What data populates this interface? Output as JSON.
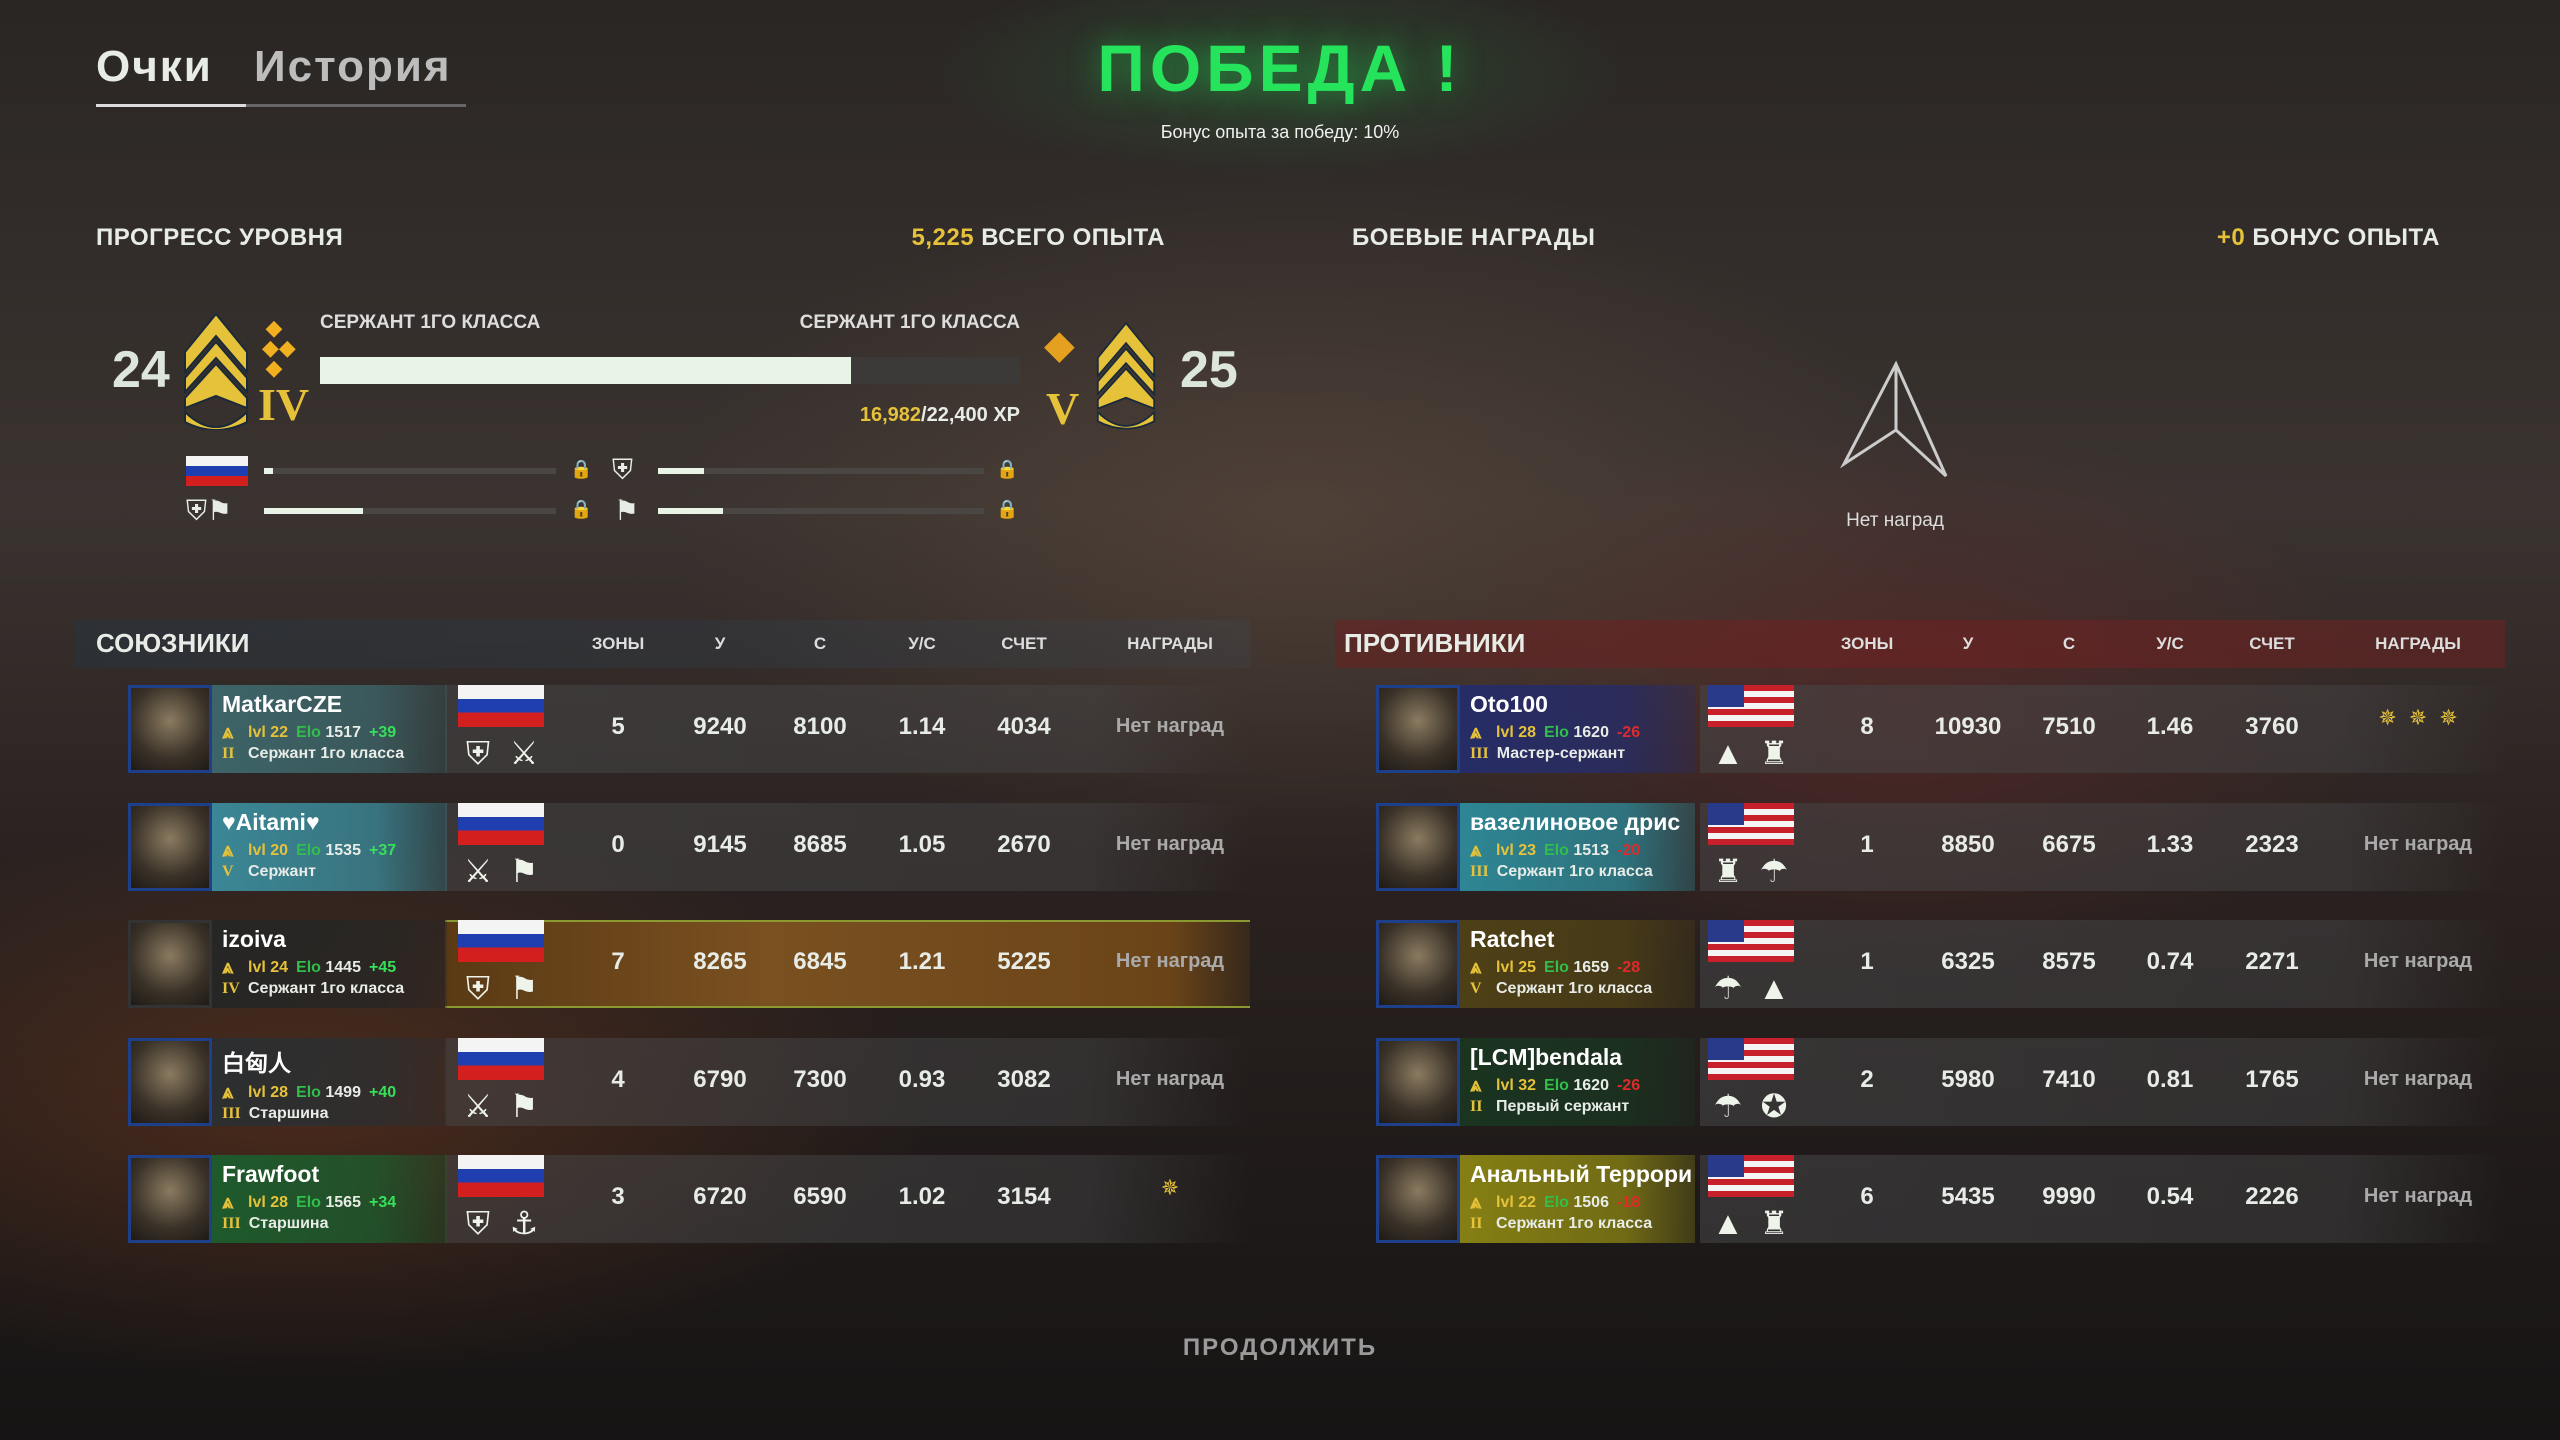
{
  "tabs": [
    {
      "label": "Очки",
      "active": true
    },
    {
      "label": "История",
      "active": false
    }
  ],
  "result": {
    "title": "ПОБЕДА !",
    "subtitle": "Бонус опыта за победу: 10%",
    "title_color": "#26e35c"
  },
  "progress": {
    "header": "ПРОГРЕСС УРОВНЯ",
    "total_xp_value": "5,225",
    "total_xp_label": "ВСЕГО ОПЫТА",
    "current_level": "24",
    "next_level": "25",
    "current_rank": "СЕРЖАНТ 1ГО КЛАССА",
    "next_rank": "СЕРЖАНТ 1ГО КЛАССА",
    "current_numeral": "IV",
    "next_numeral": "V",
    "xp_current": "16,982",
    "xp_total": "/22,400 XP",
    "fill_fraction": 0.758,
    "sub_progress": [
      {
        "icon": "russia-flag-icon",
        "fraction": 0.03
      },
      {
        "icon": "tank-class-icon",
        "fraction": 0.14
      },
      {
        "icon": "tank-support-class-icon",
        "fraction": 0.34
      },
      {
        "icon": "support-class-icon",
        "fraction": 0.2
      }
    ]
  },
  "awards": {
    "header": "БОЕВЫЕ НАГРАДЫ",
    "bonus_value": "+0",
    "bonus_label": "БОНУС ОПЫТА",
    "empty_text": "Нет наград"
  },
  "columns": [
    "ЗОНЫ",
    "У",
    "С",
    "У/С",
    "СЧЕТ",
    "НАГРАДЫ"
  ],
  "allies": {
    "title": "СОЮЗНИКИ",
    "players": [
      {
        "name": "MatkarCZE",
        "lvl": "lvl 22",
        "elo_label": "Elo",
        "elo": "1517",
        "delta": "+39",
        "rank": "Сержант 1го класса",
        "numeral": "II",
        "flag": "ru",
        "panel": "#3d6468",
        "classes": [
          "tank-icon",
          "crossed-rifles-icon"
        ],
        "zones": "5",
        "u": "9240",
        "s": "8100",
        "us": "1.14",
        "score": "4034",
        "awards": "Нет наград",
        "medals": 0
      },
      {
        "name": "♥Aitami♥",
        "lvl": "lvl 20",
        "elo_label": "Elo",
        "elo": "1535",
        "delta": "+37",
        "rank": "Сержант",
        "numeral": "V",
        "flag": "ru",
        "panel": "#3b8796",
        "classes": [
          "crossed-rifles-icon",
          "support-icon"
        ],
        "zones": "0",
        "u": "9145",
        "s": "8685",
        "us": "1.05",
        "score": "2670",
        "awards": "Нет наград",
        "medals": 0
      },
      {
        "name": "izoiva",
        "lvl": "lvl 24",
        "elo_label": "Elo",
        "elo": "1445",
        "delta": "+45",
        "rank": "Сержант 1го класса",
        "numeral": "IV",
        "flag": "ru",
        "panel": "#262624",
        "classes": [
          "tank-icon",
          "support-icon"
        ],
        "zones": "7",
        "u": "8265",
        "s": "6845",
        "us": "1.21",
        "score": "5225",
        "awards": "Нет наград",
        "medals": 0,
        "highlight": true
      },
      {
        "name": "白匈人",
        "lvl": "lvl 28",
        "elo_label": "Elo",
        "elo": "1499",
        "delta": "+40",
        "rank": "Старшина",
        "numeral": "III",
        "flag": "ru",
        "panel": "#2c2e30",
        "classes": [
          "crossed-rifles-icon",
          "support-icon"
        ],
        "zones": "4",
        "u": "6790",
        "s": "7300",
        "us": "0.93",
        "score": "3082",
        "awards": "Нет наград",
        "medals": 0
      },
      {
        "name": "Frawfoot",
        "lvl": "lvl 28",
        "elo_label": "Elo",
        "elo": "1565",
        "delta": "+34",
        "rank": "Старшина",
        "numeral": "III",
        "flag": "ru",
        "panel": "#1e5a2c",
        "classes": [
          "tank-icon",
          "anchor-icon"
        ],
        "zones": "3",
        "u": "6720",
        "s": "6590",
        "us": "1.02",
        "score": "3154",
        "awards": "",
        "medals": 1
      }
    ]
  },
  "enemies": {
    "title": "ПРОТИВНИКИ",
    "players": [
      {
        "name": "Oto100",
        "lvl": "lvl 28",
        "elo_label": "Elo",
        "elo": "1620",
        "delta": "-26",
        "rank": "Мастер-сержант",
        "numeral": "III",
        "flag": "us",
        "panel": "#262c66",
        "classes": [
          "artillery-icon",
          "engineer-icon"
        ],
        "zones": "8",
        "u": "10930",
        "s": "7510",
        "us": "1.46",
        "score": "3760",
        "awards": "",
        "medals": 3
      },
      {
        "name": "вазелиновое дрис",
        "lvl": "lvl 23",
        "elo_label": "Elo",
        "elo": "1513",
        "delta": "-20",
        "rank": "Сержант 1го класса",
        "numeral": "III",
        "flag": "us",
        "panel": "#2e8694",
        "classes": [
          "engineer-icon",
          "paratrooper-icon"
        ],
        "zones": "1",
        "u": "8850",
        "s": "6675",
        "us": "1.33",
        "score": "2323",
        "awards": "Нет наград",
        "medals": 0
      },
      {
        "name": "Ratchet",
        "lvl": "lvl 25",
        "elo_label": "Elo",
        "elo": "1659",
        "delta": "-28",
        "rank": "Сержант 1го класса",
        "numeral": "V",
        "flag": "us",
        "panel": "#4e4016",
        "classes": [
          "paratrooper-icon",
          "artillery-icon"
        ],
        "zones": "1",
        "u": "6325",
        "s": "8575",
        "us": "0.74",
        "score": "2271",
        "awards": "Нет наград",
        "medals": 0
      },
      {
        "name": "[LCM]bendala",
        "lvl": "lvl 32",
        "elo_label": "Elo",
        "elo": "1620",
        "delta": "-26",
        "rank": "Первый сержант",
        "numeral": "II",
        "flag": "us",
        "panel": "#1a3420",
        "classes": [
          "paratrooper-icon",
          "marines-icon"
        ],
        "zones": "2",
        "u": "5980",
        "s": "7410",
        "us": "0.81",
        "score": "1765",
        "awards": "Нет наград",
        "medals": 0
      },
      {
        "name": "Анальный Террори",
        "lvl": "lvl 22",
        "elo_label": "Elo",
        "elo": "1506",
        "delta": "-18",
        "rank": "Сержант 1го класса",
        "numeral": "II",
        "flag": "us",
        "panel": "#857f14",
        "classes": [
          "artillery-icon",
          "engineer-icon"
        ],
        "zones": "6",
        "u": "5435",
        "s": "9990",
        "us": "0.54",
        "score": "2226",
        "awards": "Нет наград",
        "medals": 0
      }
    ]
  },
  "continue_label": "ПРОДОЛЖИТЬ"
}
